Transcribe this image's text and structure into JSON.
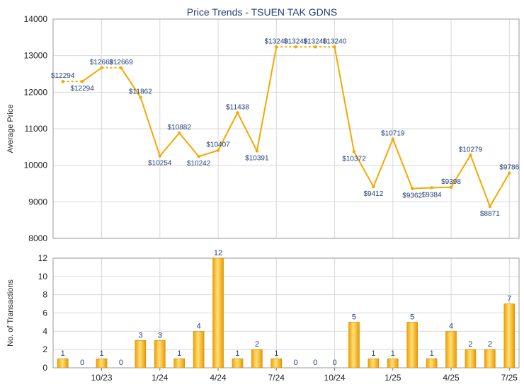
{
  "chart_data": [
    {
      "type": "line",
      "title": "Price Trends - TSUEN TAK GDNS",
      "ylabel": "Average Price",
      "ylim": [
        8000,
        14000
      ],
      "yticks": [
        8000,
        9000,
        10000,
        11000,
        12000,
        13000,
        14000
      ],
      "grid": true,
      "color": "#f5a800",
      "points": [
        {
          "month": "2023-08",
          "value": 12294,
          "label": "$12294"
        },
        {
          "month": "2023-09",
          "value": 12294,
          "label": "$12294"
        },
        {
          "month": "2023-10",
          "value": 12669,
          "label": "$12669"
        },
        {
          "month": "2023-11",
          "value": 12669,
          "label": "$12669"
        },
        {
          "month": "2023-12",
          "value": 11862,
          "label": "$11862"
        },
        {
          "month": "2024-01",
          "value": 10254,
          "label": "$10254"
        },
        {
          "month": "2024-02",
          "value": 10882,
          "label": "$10882"
        },
        {
          "month": "2024-03",
          "value": 10242,
          "label": "$10242"
        },
        {
          "month": "2024-04",
          "value": 10407,
          "label": "$10407"
        },
        {
          "month": "2024-05",
          "value": 11438,
          "label": "$11438"
        },
        {
          "month": "2024-06",
          "value": 10391,
          "label": "$10391"
        },
        {
          "month": "2024-07",
          "value": 13240,
          "label": "$13240"
        },
        {
          "month": "2024-08",
          "value": 13240,
          "label": "$13240"
        },
        {
          "month": "2024-09",
          "value": 13240,
          "label": "$13240"
        },
        {
          "month": "2024-10",
          "value": 13240,
          "label": "$13240"
        },
        {
          "month": "2024-11",
          "value": 10372,
          "label": "$10372"
        },
        {
          "month": "2024-12",
          "value": 9412,
          "label": "$9412"
        },
        {
          "month": "2025-01",
          "value": 10719,
          "label": "$10719"
        },
        {
          "month": "2025-02",
          "value": 9362,
          "label": "$9362"
        },
        {
          "month": "2025-03",
          "value": 9384,
          "label": "$9384"
        },
        {
          "month": "2025-04",
          "value": 9398,
          "label": "$9398"
        },
        {
          "month": "2025-05",
          "value": 10279,
          "label": "$10279"
        },
        {
          "month": "2025-06",
          "value": 8871,
          "label": "$8871"
        },
        {
          "month": "2025-07",
          "value": 9786,
          "label": "$9786"
        }
      ]
    },
    {
      "type": "bar",
      "ylabel": "No. of Transactions",
      "ylim": [
        0,
        12
      ],
      "yticks": [
        0,
        2,
        4,
        6,
        8,
        10,
        12
      ],
      "grid": true,
      "color": "#f5a800",
      "categories": [
        "2023-08",
        "2023-09",
        "2023-10",
        "2023-11",
        "2023-12",
        "2024-01",
        "2024-02",
        "2024-03",
        "2024-04",
        "2024-05",
        "2024-06",
        "2024-07",
        "2024-08",
        "2024-09",
        "2024-10",
        "2024-11",
        "2024-12",
        "2025-01",
        "2025-02",
        "2025-03",
        "2025-04",
        "2025-05",
        "2025-06",
        "2025-07"
      ],
      "values": [
        1,
        0,
        1,
        0,
        3,
        3,
        1,
        4,
        12,
        1,
        2,
        1,
        0,
        0,
        0,
        5,
        1,
        1,
        5,
        1,
        4,
        2,
        2,
        7
      ],
      "xtick_labels": [
        {
          "month": "2023-10",
          "label": "10/23"
        },
        {
          "month": "2024-01",
          "label": "1/24"
        },
        {
          "month": "2024-04",
          "label": "4/24"
        },
        {
          "month": "2024-07",
          "label": "7/24"
        },
        {
          "month": "2024-10",
          "label": "10/24"
        },
        {
          "month": "2025-01",
          "label": "1/25"
        },
        {
          "month": "2025-04",
          "label": "4/25"
        },
        {
          "month": "2025-07",
          "label": "7/25"
        }
      ]
    }
  ]
}
